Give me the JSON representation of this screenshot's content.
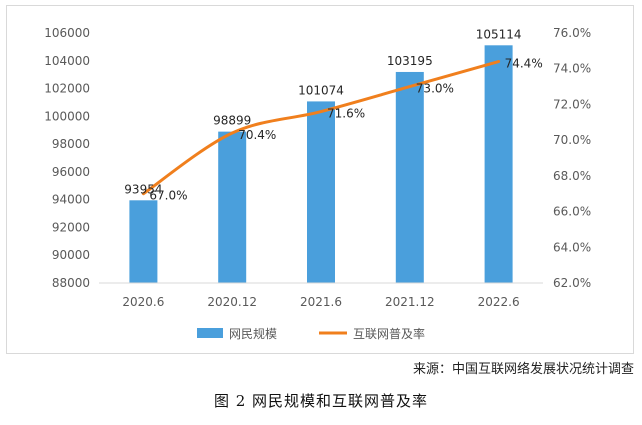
{
  "chart_data": {
    "type": "bar+line",
    "categories": [
      "2020.6",
      "2020.12",
      "2021.6",
      "2021.12",
      "2022.6"
    ],
    "series": [
      {
        "name": "网民规模",
        "type": "bar",
        "axis": "left",
        "values": [
          93954,
          98899,
          101074,
          103195,
          105114
        ],
        "labels": [
          "93954",
          "98899",
          "101074",
          "103195",
          "105114"
        ],
        "color": "#4a9fdc"
      },
      {
        "name": "互联网普及率",
        "type": "line",
        "axis": "right",
        "values": [
          67.0,
          70.4,
          71.6,
          73.0,
          74.4
        ],
        "labels": [
          "67.0%",
          "70.4%",
          "71.6%",
          "73.0%",
          "74.4%"
        ],
        "color": "#f07f1d"
      }
    ],
    "y_left": {
      "range": [
        88000,
        106000
      ],
      "ticks": [
        "88000",
        "90000",
        "92000",
        "94000",
        "96000",
        "98000",
        "100000",
        "102000",
        "104000",
        "106000"
      ]
    },
    "y_right": {
      "range": [
        62,
        76
      ],
      "ticks": [
        "62.0%",
        "64.0%",
        "66.0%",
        "68.0%",
        "70.0%",
        "72.0%",
        "74.0%",
        "76.0%"
      ]
    },
    "grid": false,
    "legend_position": "bottom"
  },
  "source_note": "来源：中国互联网络发展状况统计调查",
  "caption": "图 2 网民规模和互联网普及率"
}
